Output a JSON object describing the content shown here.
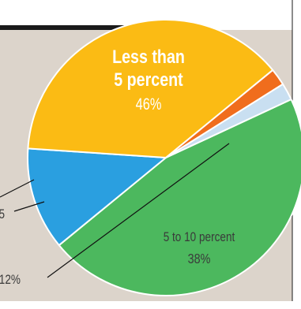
{
  "chart_data": {
    "type": "pie",
    "slices": [
      {
        "label": "Less than 5 percent",
        "label_lines": [
          "Less than",
          "5 percent"
        ],
        "value": 46,
        "value_text": "46%",
        "color": "#4cb85e"
      },
      {
        "label": "",
        "value": 12,
        "value_text": "12%",
        "color": "#2a9fe0"
      },
      {
        "label": "5 to 10 percent",
        "label_lines": [
          "5 to 10 percent"
        ],
        "value": 38,
        "value_text": "38%",
        "color": "#fbbb14"
      },
      {
        "label": "",
        "value": 2,
        "value_text": "",
        "color": "#f06d1d"
      },
      {
        "label": "",
        "value": 2,
        "value_text": "",
        "color": "#c9dff1"
      }
    ],
    "clipped_labels": {
      "orange_fragment": "5"
    }
  },
  "colors": {
    "panel_background": "#dcd4cb",
    "header_bar": "#1a1a1a",
    "slice_separator": "#ffffff",
    "leader_line": "#111111",
    "label_text_on_green": "#ffffff",
    "label_text_on_yellow": "#3a3a3a"
  }
}
